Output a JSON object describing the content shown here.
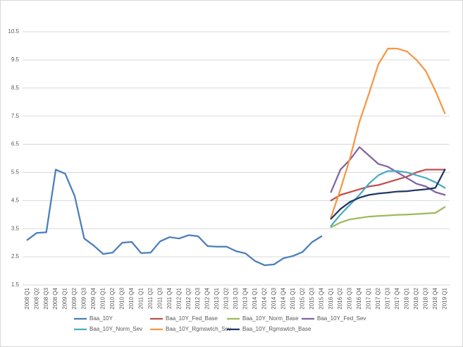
{
  "chart_data": {
    "type": "line",
    "categories": [
      "2008 Q1",
      "2008 Q2",
      "2008 Q3",
      "2008 Q4",
      "2009 Q1",
      "2009 Q2",
      "2009 Q3",
      "2009 Q4",
      "2010 Q1",
      "2010 Q2",
      "2010 Q3",
      "2010 Q4",
      "2011 Q1",
      "2011 Q2",
      "2011 Q3",
      "2011 Q4",
      "2012 Q1",
      "2012 Q2",
      "2012 Q3",
      "2012 Q4",
      "2013 Q1",
      "2013 Q2",
      "2013 Q3",
      "2013 Q4",
      "2014 Q1",
      "2014 Q2",
      "2014 Q3",
      "2014 Q4",
      "2015 Q1",
      "2015 Q2",
      "2015 Q3",
      "2015 Q4",
      "2016 Q1",
      "2016 Q2",
      "2016 Q3",
      "2016 Q4",
      "2017 Q1",
      "2017 Q2",
      "2017 Q3",
      "2017 Q4",
      "2018 Q1",
      "2018 Q2",
      "2018 Q3",
      "2018 Q4",
      "2019 Q1"
    ],
    "ylim": [
      1.5,
      10.5
    ],
    "yticks": [
      1.5,
      2.5,
      3.5,
      4.5,
      5.5,
      6.5,
      7.5,
      8.5,
      9.5,
      10.5
    ],
    "grid": true,
    "series": [
      {
        "name": "Baa_10Y",
        "color": "#4a7ebb",
        "values": [
          3.1,
          3.35,
          3.37,
          5.6,
          5.45,
          4.65,
          3.15,
          2.9,
          2.6,
          2.65,
          3.0,
          3.03,
          2.63,
          2.65,
          3.05,
          3.2,
          3.15,
          3.27,
          3.23,
          2.88,
          2.86,
          2.86,
          2.7,
          2.62,
          2.35,
          2.2,
          2.23,
          2.45,
          2.53,
          2.67,
          3.02,
          3.23,
          null,
          null,
          null,
          null,
          null,
          null,
          null,
          null,
          null,
          null,
          null,
          null,
          null
        ]
      },
      {
        "name": "Baa_10Y_Fed_Base",
        "color": "#c0504d",
        "values": [
          null,
          null,
          null,
          null,
          null,
          null,
          null,
          null,
          null,
          null,
          null,
          null,
          null,
          null,
          null,
          null,
          null,
          null,
          null,
          null,
          null,
          null,
          null,
          null,
          null,
          null,
          null,
          null,
          null,
          null,
          null,
          null,
          4.5,
          4.7,
          4.8,
          4.9,
          5.0,
          5.05,
          5.15,
          5.25,
          5.35,
          5.5,
          5.6,
          5.6,
          5.6
        ]
      },
      {
        "name": "Baa_10Y_Norm_Base",
        "color": "#9bbb59",
        "values": [
          null,
          null,
          null,
          null,
          null,
          null,
          null,
          null,
          null,
          null,
          null,
          null,
          null,
          null,
          null,
          null,
          null,
          null,
          null,
          null,
          null,
          null,
          null,
          null,
          null,
          null,
          null,
          null,
          null,
          null,
          null,
          null,
          3.55,
          3.72,
          3.83,
          3.88,
          3.93,
          3.95,
          3.97,
          3.99,
          4.0,
          4.02,
          4.04,
          4.06,
          4.27
        ]
      },
      {
        "name": "Baa_10Y_Fed_Sev",
        "color": "#8064a2",
        "values": [
          null,
          null,
          null,
          null,
          null,
          null,
          null,
          null,
          null,
          null,
          null,
          null,
          null,
          null,
          null,
          null,
          null,
          null,
          null,
          null,
          null,
          null,
          null,
          null,
          null,
          null,
          null,
          null,
          null,
          null,
          null,
          null,
          4.8,
          5.6,
          5.95,
          6.4,
          6.1,
          5.8,
          5.7,
          5.5,
          5.3,
          5.1,
          5.0,
          4.8,
          4.7
        ]
      },
      {
        "name": "Baa_10Y_Norm_Sev",
        "color": "#4bacc6",
        "values": [
          null,
          null,
          null,
          null,
          null,
          null,
          null,
          null,
          null,
          null,
          null,
          null,
          null,
          null,
          null,
          null,
          null,
          null,
          null,
          null,
          null,
          null,
          null,
          null,
          null,
          null,
          null,
          null,
          null,
          null,
          null,
          null,
          3.6,
          4.0,
          4.35,
          4.7,
          5.1,
          5.4,
          5.55,
          5.55,
          5.5,
          5.4,
          5.3,
          5.15,
          4.95
        ]
      },
      {
        "name": "Baa_10Y_Rgmswtch_Sev",
        "color": "#f79646",
        "values": [
          null,
          null,
          null,
          null,
          null,
          null,
          null,
          null,
          null,
          null,
          null,
          null,
          null,
          null,
          null,
          null,
          null,
          null,
          null,
          null,
          null,
          null,
          null,
          null,
          null,
          null,
          null,
          null,
          null,
          null,
          null,
          null,
          3.9,
          4.9,
          6.0,
          7.3,
          8.3,
          9.35,
          9.9,
          9.9,
          9.8,
          9.5,
          9.1,
          8.4,
          7.6
        ]
      },
      {
        "name": "Baa_10Y_Rgmswtch_Base",
        "color": "#1f3864",
        "values": [
          null,
          null,
          null,
          null,
          null,
          null,
          null,
          null,
          null,
          null,
          null,
          null,
          null,
          null,
          null,
          null,
          null,
          null,
          null,
          null,
          null,
          null,
          null,
          null,
          null,
          null,
          null,
          null,
          null,
          null,
          null,
          null,
          3.85,
          4.2,
          4.45,
          4.6,
          4.7,
          4.75,
          4.78,
          4.82,
          4.83,
          4.87,
          4.9,
          4.95,
          5.6
        ]
      }
    ]
  }
}
